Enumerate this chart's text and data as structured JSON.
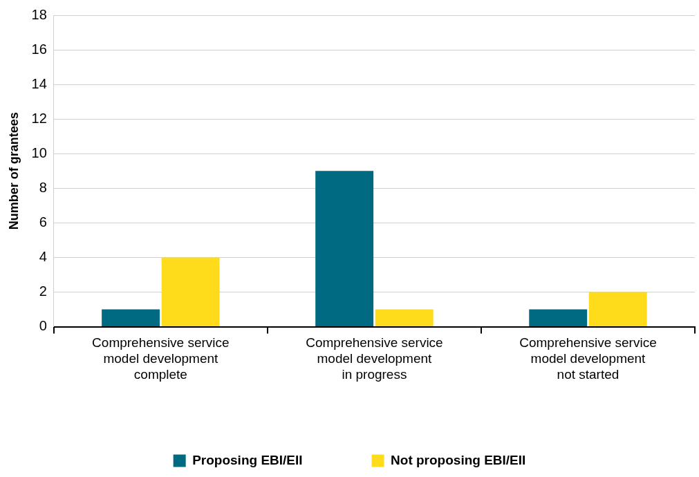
{
  "chart_data": {
    "type": "bar",
    "ylabel": "Number of grantees",
    "categories": [
      "Comprehensive service model development complete",
      "Comprehensive service model development in progress",
      "Comprehensive service model development not started"
    ],
    "series": [
      {
        "name": "Proposing EBI/EII",
        "color": "#006a82",
        "values": [
          1,
          9,
          1
        ]
      },
      {
        "name": "Not proposing EBI/EII",
        "color": "#ffdc1b",
        "values": [
          4,
          1,
          2
        ]
      }
    ],
    "ylim": [
      0,
      18
    ],
    "yticks": [
      0,
      2,
      4,
      6,
      8,
      10,
      12,
      14,
      16,
      18
    ],
    "grid": "y",
    "legend": "bottom"
  }
}
